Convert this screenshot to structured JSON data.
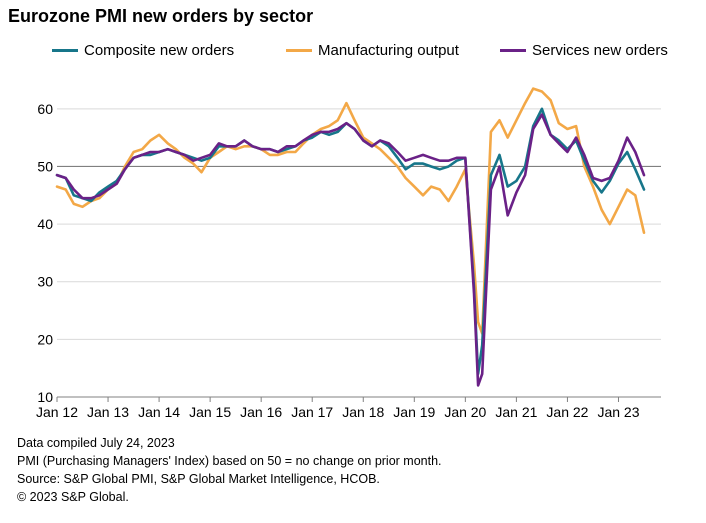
{
  "chart_data": {
    "type": "line",
    "title": "Eurozone PMI new orders by sector",
    "xlabel": "",
    "ylabel": "",
    "ylim": [
      10,
      65
    ],
    "yticks": [
      10,
      20,
      30,
      40,
      50,
      60
    ],
    "reference_line": 50,
    "xlim": [
      2012.0,
      2023.833
    ],
    "xticks": [
      {
        "label": "Jan 12",
        "value": 2012.0
      },
      {
        "label": "Jan 13",
        "value": 2013.0
      },
      {
        "label": "Jan 14",
        "value": 2014.0
      },
      {
        "label": "Jan 15",
        "value": 2015.0
      },
      {
        "label": "Jan 16",
        "value": 2016.0
      },
      {
        "label": "Jan 17",
        "value": 2017.0
      },
      {
        "label": "Jan 18",
        "value": 2018.0
      },
      {
        "label": "Jan 19",
        "value": 2019.0
      },
      {
        "label": "Jan 20",
        "value": 2020.0
      },
      {
        "label": "Jan 21",
        "value": 2021.0
      },
      {
        "label": "Jan 22",
        "value": 2022.0
      },
      {
        "label": "Jan 23",
        "value": 2023.0
      }
    ],
    "series": [
      {
        "name": "Composite new orders",
        "color": "#17768a",
        "x": [
          2012.0,
          2012.17,
          2012.33,
          2012.5,
          2012.67,
          2012.83,
          2013.0,
          2013.17,
          2013.33,
          2013.5,
          2013.67,
          2013.83,
          2014.0,
          2014.17,
          2014.33,
          2014.5,
          2014.67,
          2014.83,
          2015.0,
          2015.17,
          2015.33,
          2015.5,
          2015.67,
          2015.83,
          2016.0,
          2016.17,
          2016.33,
          2016.5,
          2016.67,
          2016.83,
          2017.0,
          2017.17,
          2017.33,
          2017.5,
          2017.67,
          2017.83,
          2018.0,
          2018.17,
          2018.33,
          2018.5,
          2018.67,
          2018.83,
          2019.0,
          2019.17,
          2019.33,
          2019.5,
          2019.67,
          2019.83,
          2020.0,
          2020.17,
          2020.25,
          2020.33,
          2020.5,
          2020.67,
          2020.83,
          2021.0,
          2021.17,
          2021.33,
          2021.5,
          2021.67,
          2021.83,
          2022.0,
          2022.17,
          2022.33,
          2022.5,
          2022.67,
          2022.83,
          2023.0,
          2023.17,
          2023.33,
          2023.5
        ],
        "values": [
          48.5,
          48.0,
          45.0,
          44.5,
          44.0,
          45.5,
          46.5,
          47.5,
          49.5,
          51.5,
          52.0,
          52.0,
          52.5,
          53.0,
          52.5,
          52.0,
          51.5,
          51.0,
          51.5,
          53.5,
          53.5,
          53.5,
          54.5,
          53.5,
          53.0,
          53.0,
          52.5,
          53.0,
          53.5,
          54.5,
          55.0,
          56.0,
          55.5,
          56.0,
          57.5,
          56.5,
          54.5,
          53.5,
          54.5,
          53.5,
          51.5,
          49.5,
          50.5,
          50.5,
          50.0,
          49.5,
          50.0,
          51.0,
          51.5,
          29.0,
          14.0,
          19.0,
          48.5,
          52.0,
          46.5,
          47.5,
          50.0,
          57.0,
          60.0,
          55.5,
          54.5,
          53.0,
          54.5,
          51.0,
          47.5,
          45.5,
          47.5,
          50.5,
          52.5,
          49.5,
          46.0
        ]
      },
      {
        "name": "Manufacturing output",
        "color": "#f3a847",
        "x": [
          2012.0,
          2012.17,
          2012.33,
          2012.5,
          2012.67,
          2012.83,
          2013.0,
          2013.17,
          2013.33,
          2013.5,
          2013.67,
          2013.83,
          2014.0,
          2014.17,
          2014.33,
          2014.5,
          2014.67,
          2014.83,
          2015.0,
          2015.17,
          2015.33,
          2015.5,
          2015.67,
          2015.83,
          2016.0,
          2016.17,
          2016.33,
          2016.5,
          2016.67,
          2016.83,
          2017.0,
          2017.17,
          2017.33,
          2017.5,
          2017.67,
          2017.83,
          2018.0,
          2018.17,
          2018.33,
          2018.5,
          2018.67,
          2018.83,
          2019.0,
          2019.17,
          2019.33,
          2019.5,
          2019.67,
          2019.83,
          2020.0,
          2020.17,
          2020.25,
          2020.33,
          2020.5,
          2020.67,
          2020.83,
          2021.0,
          2021.17,
          2021.33,
          2021.5,
          2021.67,
          2021.83,
          2022.0,
          2022.17,
          2022.33,
          2022.5,
          2022.67,
          2022.83,
          2023.0,
          2023.17,
          2023.33,
          2023.5
        ],
        "values": [
          46.5,
          46.0,
          43.5,
          43.0,
          44.0,
          44.5,
          46.0,
          47.0,
          50.0,
          52.5,
          53.0,
          54.5,
          55.5,
          54.0,
          53.0,
          51.5,
          50.5,
          49.0,
          51.5,
          52.5,
          53.5,
          53.0,
          53.5,
          53.5,
          53.0,
          52.0,
          52.0,
          52.5,
          52.5,
          54.0,
          55.5,
          56.5,
          57.0,
          58.0,
          61.0,
          58.0,
          55.0,
          54.0,
          53.0,
          51.5,
          50.0,
          48.0,
          46.5,
          45.0,
          46.5,
          46.0,
          44.0,
          46.5,
          49.5,
          33.0,
          23.0,
          21.0,
          56.0,
          58.0,
          55.0,
          58.0,
          61.0,
          63.5,
          63.0,
          61.5,
          57.5,
          56.5,
          57.0,
          50.0,
          46.5,
          42.5,
          40.0,
          43.0,
          46.0,
          45.0,
          38.5
        ]
      },
      {
        "name": "Services new orders",
        "color": "#6a2187",
        "x": [
          2012.0,
          2012.17,
          2012.33,
          2012.5,
          2012.67,
          2012.83,
          2013.0,
          2013.17,
          2013.33,
          2013.5,
          2013.67,
          2013.83,
          2014.0,
          2014.17,
          2014.33,
          2014.5,
          2014.67,
          2014.83,
          2015.0,
          2015.17,
          2015.33,
          2015.5,
          2015.67,
          2015.83,
          2016.0,
          2016.17,
          2016.33,
          2016.5,
          2016.67,
          2016.83,
          2017.0,
          2017.17,
          2017.33,
          2017.5,
          2017.67,
          2017.83,
          2018.0,
          2018.17,
          2018.33,
          2018.5,
          2018.67,
          2018.83,
          2019.0,
          2019.17,
          2019.33,
          2019.5,
          2019.67,
          2019.83,
          2020.0,
          2020.17,
          2020.25,
          2020.33,
          2020.5,
          2020.67,
          2020.83,
          2021.0,
          2021.17,
          2021.33,
          2021.5,
          2021.67,
          2021.83,
          2022.0,
          2022.17,
          2022.33,
          2022.5,
          2022.67,
          2022.83,
          2023.0,
          2023.17,
          2023.33,
          2023.5
        ],
        "values": [
          48.5,
          48.0,
          46.0,
          44.5,
          44.5,
          45.0,
          46.0,
          47.0,
          49.5,
          51.5,
          52.0,
          52.5,
          52.5,
          53.0,
          52.5,
          52.0,
          51.0,
          51.5,
          52.0,
          54.0,
          53.5,
          53.5,
          54.5,
          53.5,
          53.0,
          53.0,
          52.5,
          53.5,
          53.5,
          54.5,
          55.5,
          56.0,
          56.0,
          56.5,
          57.5,
          56.5,
          54.5,
          53.5,
          54.5,
          54.0,
          52.5,
          51.0,
          51.5,
          52.0,
          51.5,
          51.0,
          51.0,
          51.5,
          51.5,
          28.0,
          12.0,
          14.0,
          46.0,
          50.0,
          41.5,
          45.5,
          48.5,
          56.5,
          59.0,
          55.5,
          54.0,
          52.5,
          55.0,
          52.0,
          48.0,
          47.5,
          48.0,
          51.0,
          55.0,
          52.5,
          48.5
        ]
      }
    ]
  },
  "footer": {
    "line1": "Data compiled July 24, 2023",
    "line2": "PMI (Purchasing Managers' Index) based on 50 = no change on prior month.",
    "line3": "Source: S&P Global PMI, S&P Global Market Intelligence, HCOB.",
    "line4": "© 2023 S&P Global."
  }
}
